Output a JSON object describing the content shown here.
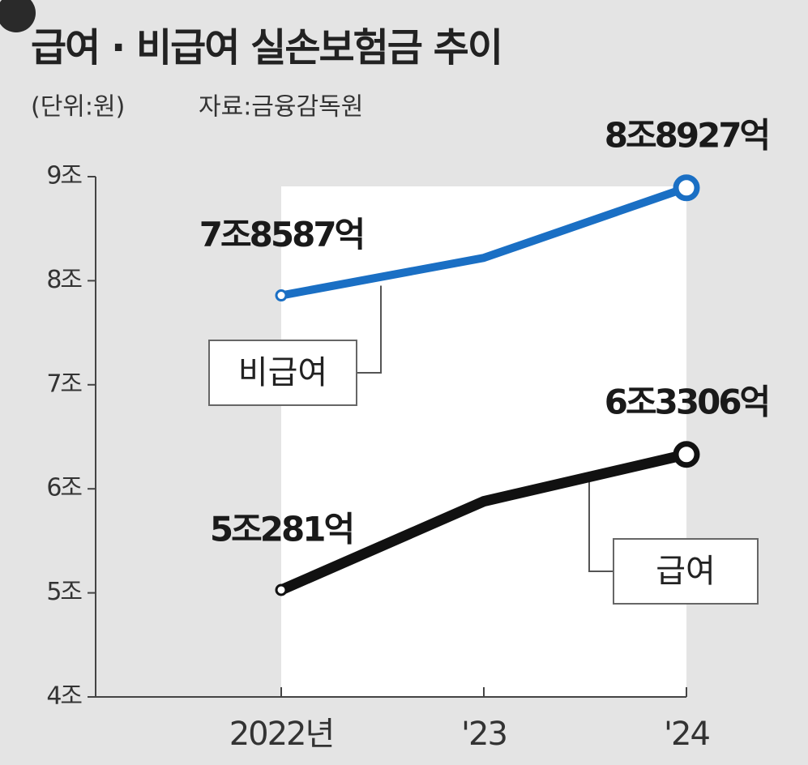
{
  "chart_data": {
    "type": "line",
    "title": "급여 · 비급여 실손보험금 추이",
    "subtitle": "(단위:원)",
    "source": "자료:금융감독원",
    "categories": [
      "2022년",
      "'23",
      "'24"
    ],
    "series": [
      {
        "name": "비급여",
        "color": "#1a6fc4",
        "values": [
          7.8587,
          8.22,
          8.8927
        ],
        "value_labels": [
          "7조8587억",
          null,
          "8조8927억"
        ]
      },
      {
        "name": "급여",
        "color": "#111111",
        "values": [
          5.0281,
          5.88,
          6.3306
        ],
        "value_labels": [
          "5조281억",
          null,
          "6조3306억"
        ]
      }
    ],
    "ylim": [
      4,
      9
    ],
    "yticks": [
      {
        "value": 4,
        "label": "4조"
      },
      {
        "value": 5,
        "label": "5조"
      },
      {
        "value": 6,
        "label": "6조"
      },
      {
        "value": 7,
        "label": "7조"
      },
      {
        "value": 8,
        "label": "8조"
      },
      {
        "value": 9,
        "label": "9조"
      }
    ]
  }
}
